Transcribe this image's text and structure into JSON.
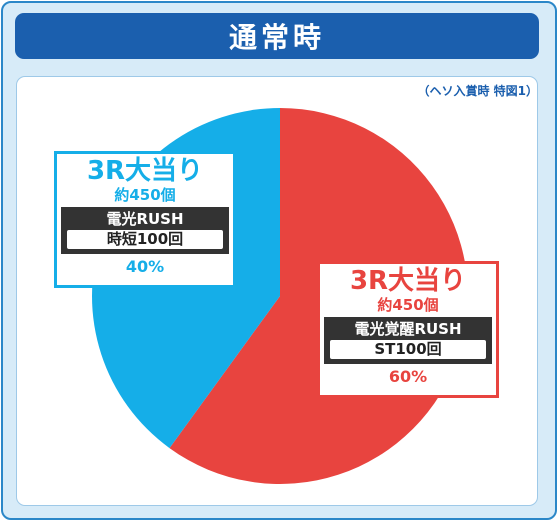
{
  "header": {
    "title": "通常時",
    "note": "（ヘソ入賞時 特図1）"
  },
  "colors": {
    "frame_border": "#2b87c8",
    "frame_bg": "#d7ebf8",
    "title_bg": "#1b5fae",
    "blue": "#15aee8",
    "red": "#e8443f",
    "dark": "#333333"
  },
  "chart_data": {
    "type": "pie",
    "title": "通常時",
    "slices": [
      {
        "label": "3R大当り",
        "value": 60,
        "percent_label": "60%",
        "payout": "約450個",
        "mode": "電光覚醒RUSH",
        "jitan": "ST100回",
        "color": "#e8443f"
      },
      {
        "label": "3R大当り",
        "value": 40,
        "percent_label": "40%",
        "payout": "約450個",
        "mode": "電光RUSH",
        "jitan": "時短100回",
        "color": "#15aee8"
      }
    ],
    "start_angle_deg": 0,
    "direction": "clockwise"
  }
}
